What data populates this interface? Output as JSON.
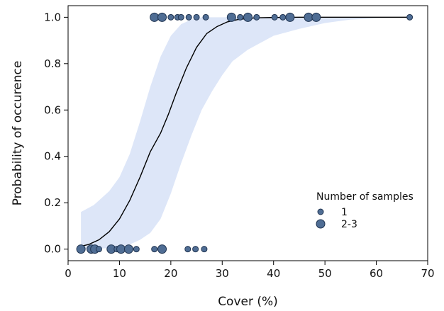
{
  "chart_data": {
    "type": "scatter",
    "xlabel": "Cover (%)",
    "ylabel": "Probability of occurence",
    "xlim": [
      0,
      70
    ],
    "ylim": [
      -0.05,
      1.05
    ],
    "x_ticks": [
      0,
      10,
      20,
      30,
      40,
      50,
      60,
      70
    ],
    "y_ticks": [
      0.0,
      0.2,
      0.4,
      0.6,
      0.8,
      1.0
    ],
    "x_tick_labels": [
      "0",
      "10",
      "20",
      "30",
      "40",
      "50",
      "60",
      "70"
    ],
    "y_tick_labels": [
      "0.0",
      "0.2",
      "0.4",
      "0.6",
      "0.8",
      "1.0"
    ],
    "grid": false,
    "legend_position": "bottom-right",
    "colors": {
      "point_fill": "#4f6d94",
      "point_stroke": "#1f3350",
      "curve": "#000000",
      "band": "#dde6f8"
    },
    "legend": {
      "title": "Number of samples",
      "entries": [
        {
          "label": "1",
          "size": "small"
        },
        {
          "label": "2-3",
          "size": "large"
        }
      ]
    },
    "fitted_curve": {
      "x": [
        2.5,
        4,
        6,
        8,
        10,
        12,
        14,
        16,
        18,
        19.5,
        21,
        23,
        25,
        27,
        29,
        31,
        33,
        35,
        37,
        40,
        45,
        50,
        55,
        60,
        66.5
      ],
      "y": [
        0.012,
        0.02,
        0.04,
        0.075,
        0.13,
        0.21,
        0.31,
        0.42,
        0.5,
        0.58,
        0.67,
        0.78,
        0.87,
        0.93,
        0.96,
        0.98,
        0.99,
        0.995,
        0.998,
        0.999,
        1.0,
        1.0,
        1.0,
        1.0,
        1.0
      ]
    },
    "confidence_band": {
      "x": [
        2.5,
        5,
        8,
        10,
        12,
        14,
        16,
        18,
        20,
        22,
        24,
        26,
        28,
        30,
        32,
        35,
        40,
        45,
        50,
        55,
        60,
        66.5
      ],
      "lower": [
        0.0,
        0.0,
        0.005,
        0.01,
        0.02,
        0.04,
        0.07,
        0.13,
        0.24,
        0.37,
        0.49,
        0.6,
        0.68,
        0.75,
        0.81,
        0.86,
        0.92,
        0.95,
        0.975,
        0.99,
        0.995,
        1.0
      ],
      "upper": [
        0.16,
        0.19,
        0.25,
        0.31,
        0.41,
        0.55,
        0.7,
        0.83,
        0.92,
        0.97,
        0.99,
        1.0,
        1.0,
        1.0,
        1.0,
        1.0,
        1.0,
        1.0,
        1.0,
        1.0,
        1.0,
        1.0
      ]
    },
    "points": [
      {
        "x": 2.5,
        "y": 0,
        "n": "2-3"
      },
      {
        "x": 4.5,
        "y": 0,
        "n": "2-3"
      },
      {
        "x": 5.2,
        "y": 0,
        "n": "2-3"
      },
      {
        "x": 6.0,
        "y": 0,
        "n": "1"
      },
      {
        "x": 8.4,
        "y": 0,
        "n": "2-3"
      },
      {
        "x": 9.5,
        "y": 0,
        "n": "1"
      },
      {
        "x": 10.3,
        "y": 0,
        "n": "2-3"
      },
      {
        "x": 11.8,
        "y": 0,
        "n": "2-3"
      },
      {
        "x": 13.3,
        "y": 0,
        "n": "1"
      },
      {
        "x": 16.8,
        "y": 0,
        "n": "1"
      },
      {
        "x": 18.3,
        "y": 0,
        "n": "2-3"
      },
      {
        "x": 23.3,
        "y": 0,
        "n": "1"
      },
      {
        "x": 24.8,
        "y": 0,
        "n": "1"
      },
      {
        "x": 26.5,
        "y": 0,
        "n": "1"
      },
      {
        "x": 16.8,
        "y": 1,
        "n": "2-3"
      },
      {
        "x": 18.3,
        "y": 1,
        "n": "2-3"
      },
      {
        "x": 20.0,
        "y": 1,
        "n": "1"
      },
      {
        "x": 21.3,
        "y": 1,
        "n": "1"
      },
      {
        "x": 22.0,
        "y": 1,
        "n": "1"
      },
      {
        "x": 23.5,
        "y": 1,
        "n": "1"
      },
      {
        "x": 25.0,
        "y": 1,
        "n": "1"
      },
      {
        "x": 26.8,
        "y": 1,
        "n": "1"
      },
      {
        "x": 31.8,
        "y": 1,
        "n": "2-3"
      },
      {
        "x": 33.5,
        "y": 1,
        "n": "1"
      },
      {
        "x": 35.0,
        "y": 1,
        "n": "2-3"
      },
      {
        "x": 36.7,
        "y": 1,
        "n": "1"
      },
      {
        "x": 40.2,
        "y": 1,
        "n": "1"
      },
      {
        "x": 41.8,
        "y": 1,
        "n": "1"
      },
      {
        "x": 43.2,
        "y": 1,
        "n": "2-3"
      },
      {
        "x": 46.8,
        "y": 1,
        "n": "2-3"
      },
      {
        "x": 48.3,
        "y": 1,
        "n": "2-3"
      },
      {
        "x": 66.5,
        "y": 1,
        "n": "1"
      }
    ]
  }
}
